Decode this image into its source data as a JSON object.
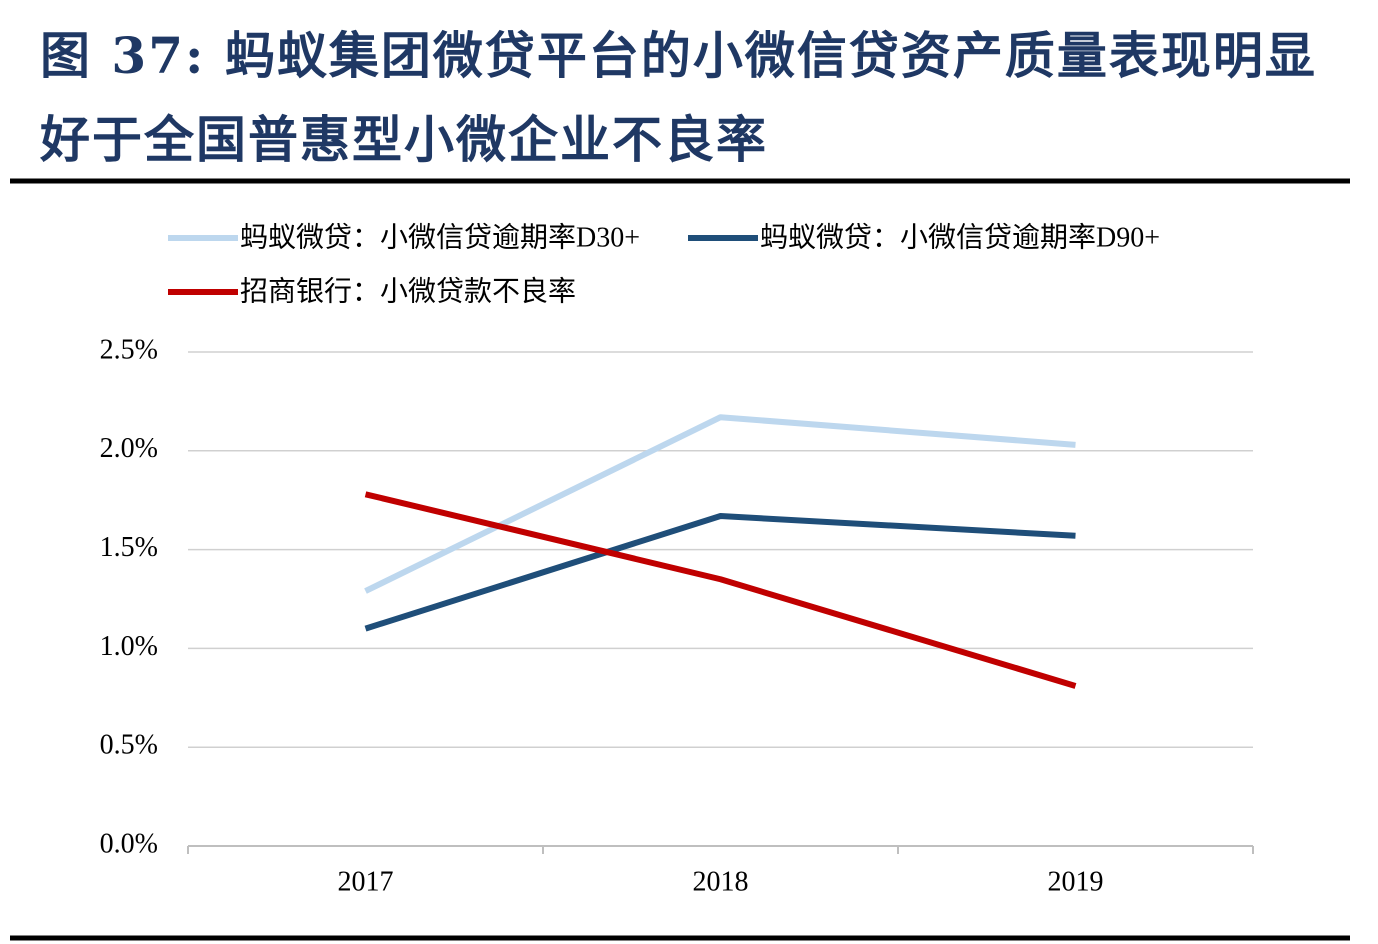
{
  "chart_data": {
    "type": "line",
    "title": "图 37: 蚂蚁集团微贷平台的小微信贷资产质量表现明显好于全国普惠型小微企业不良率",
    "categories": [
      "2017",
      "2018",
      "2019"
    ],
    "series": [
      {
        "name": "蚂蚁微贷：小微信贷逾期率D30+",
        "color": "#bdd7ee",
        "values": [
          1.29,
          2.17,
          2.03
        ]
      },
      {
        "name": "蚂蚁微贷：小微信贷逾期率D90+",
        "color": "#1f4e79",
        "values": [
          1.1,
          1.67,
          1.57
        ]
      },
      {
        "name": "招商银行：小微贷款不良率",
        "color": "#c00000",
        "values": [
          1.78,
          1.35,
          0.81
        ]
      }
    ],
    "ylim": [
      0,
      2.5
    ],
    "yticks": [
      {
        "value": 0,
        "label": "0.0%"
      },
      {
        "value": 0.5,
        "label": "0.5%"
      },
      {
        "value": 1,
        "label": "1.0%"
      },
      {
        "value": 1.5,
        "label": "1.5%"
      },
      {
        "value": 2,
        "label": "2.0%"
      },
      {
        "value": 2.5,
        "label": "2.5%"
      }
    ],
    "grid": true
  }
}
